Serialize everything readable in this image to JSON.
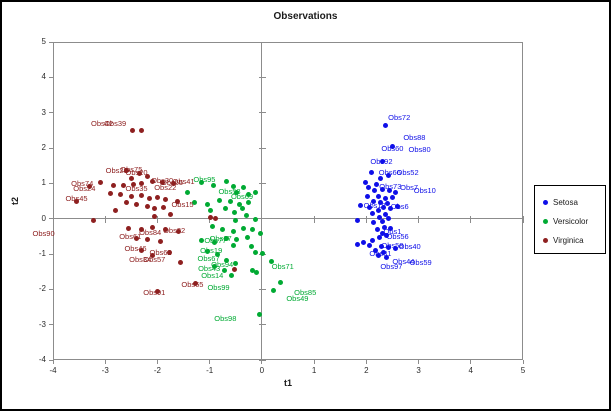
{
  "canvas": {
    "background": "#FFFFFF",
    "border_color": "#000000",
    "axis_line_color": "#8C8C8C"
  },
  "chart_data": {
    "type": "scatter",
    "title": "Observations",
    "xlabel": "t1",
    "ylabel": "t2",
    "xlim": [
      -4,
      5
    ],
    "ylim": [
      -4,
      5
    ],
    "x_ticks": [
      -4,
      -3,
      -2,
      -1,
      0,
      1,
      2,
      3,
      4,
      5
    ],
    "y_ticks": [
      -4,
      -3,
      -2,
      -1,
      0,
      1,
      2,
      3,
      4,
      5
    ],
    "grid": false,
    "legend": {
      "position": "right",
      "entries": [
        "Setosa",
        "Versicolor",
        "Virginica"
      ]
    },
    "series": [
      {
        "name": "Setosa",
        "color": "#0F0FE8",
        "points": [
          [
            2.37,
            2.63
          ],
          [
            2.51,
            2.04
          ],
          [
            2.31,
            1.63
          ],
          [
            2.1,
            1.32
          ],
          [
            1.99,
            1.02
          ],
          [
            2.2,
            0.97
          ],
          [
            2.42,
            1.21
          ],
          [
            2.28,
            1.13
          ],
          [
            2.05,
            0.88
          ],
          [
            2.16,
            0.8
          ],
          [
            2.31,
            0.82
          ],
          [
            2.44,
            0.79
          ],
          [
            2.56,
            0.74
          ],
          [
            2.02,
            0.62
          ],
          [
            2.23,
            0.62
          ],
          [
            2.37,
            0.57
          ],
          [
            2.5,
            0.59
          ],
          [
            2.13,
            0.48
          ],
          [
            2.28,
            0.45
          ],
          [
            2.41,
            0.42
          ],
          [
            1.88,
            0.36
          ],
          [
            2.06,
            0.31
          ],
          [
            2.33,
            0.31
          ],
          [
            2.47,
            0.28
          ],
          [
            2.59,
            0.34
          ],
          [
            2.23,
            0.23
          ],
          [
            2.11,
            0.14
          ],
          [
            2.36,
            0.11
          ],
          [
            2.25,
            0.03
          ],
          [
            2.42,
            0.0
          ],
          [
            1.83,
            -0.06
          ],
          [
            2.3,
            -0.08
          ],
          [
            2.13,
            -0.11
          ],
          [
            2.35,
            -0.24
          ],
          [
            2.47,
            -0.28
          ],
          [
            2.21,
            -0.31
          ],
          [
            2.3,
            -0.42
          ],
          [
            2.39,
            -0.48
          ],
          [
            2.25,
            -0.54
          ],
          [
            2.12,
            -0.62
          ],
          [
            1.95,
            -0.68
          ],
          [
            1.84,
            -0.74
          ],
          [
            2.06,
            -0.77
          ],
          [
            2.29,
            -0.79
          ],
          [
            2.42,
            -0.82
          ],
          [
            2.55,
            -0.85
          ],
          [
            2.17,
            -0.91
          ],
          [
            2.33,
            -0.96
          ],
          [
            2.24,
            -1.05
          ],
          [
            2.38,
            -1.1
          ]
        ],
        "point_labels": [
          [
            "Obs72",
            2.63,
            2.86
          ],
          [
            "Obs88",
            2.92,
            2.29
          ],
          [
            "Obs60",
            2.5,
            1.98
          ],
          [
            "Obs80",
            3.02,
            1.95
          ],
          [
            "Obs92",
            2.29,
            1.61
          ],
          [
            "Obs66",
            2.45,
            1.3
          ],
          [
            "Obs52",
            2.79,
            1.3
          ],
          [
            "Obs73",
            2.46,
            0.9
          ],
          [
            "Obs7",
            2.82,
            0.86
          ],
          [
            "Obs10",
            3.12,
            0.79
          ],
          [
            "Obs18",
            2.16,
            0.37
          ],
          [
            "Obs6",
            2.64,
            0.33
          ],
          [
            "Obs1",
            2.5,
            -0.37
          ],
          [
            "Obs56",
            2.6,
            -0.51
          ],
          [
            "Obs58",
            2.5,
            -0.76
          ],
          [
            "Obs40",
            2.83,
            -0.79
          ],
          [
            "Obs31",
            2.27,
            -0.99
          ],
          [
            "Obs44",
            2.71,
            -1.22
          ],
          [
            "Obs59",
            3.04,
            -1.25
          ],
          [
            "Obs97",
            2.48,
            -1.36
          ]
        ]
      },
      {
        "name": "Versicolor",
        "color": "#00AA33",
        "points": [
          [
            -1.42,
            0.75
          ],
          [
            -1.15,
            1.02
          ],
          [
            -0.92,
            0.95
          ],
          [
            -0.68,
            1.05
          ],
          [
            -0.55,
            0.92
          ],
          [
            -0.35,
            0.88
          ],
          [
            -0.48,
            0.75
          ],
          [
            -0.25,
            0.68
          ],
          [
            -0.12,
            0.75
          ],
          [
            -1.3,
            0.45
          ],
          [
            -1.05,
            0.4
          ],
          [
            -0.82,
            0.52
          ],
          [
            -0.6,
            0.48
          ],
          [
            -0.42,
            0.4
          ],
          [
            -0.25,
            0.45
          ],
          [
            -0.38,
            0.28
          ],
          [
            -0.7,
            0.28
          ],
          [
            -0.52,
            0.18
          ],
          [
            -0.98,
            0.22
          ],
          [
            -0.3,
            0.08
          ],
          [
            -0.12,
            -0.03
          ],
          [
            -0.5,
            -0.05
          ],
          [
            -0.95,
            -0.22
          ],
          [
            -0.75,
            -0.3
          ],
          [
            -0.55,
            -0.35
          ],
          [
            -0.35,
            -0.28
          ],
          [
            -0.18,
            -0.32
          ],
          [
            -0.02,
            -0.42
          ],
          [
            -0.28,
            -0.52
          ],
          [
            -0.48,
            -0.58
          ],
          [
            -0.68,
            -0.55
          ],
          [
            -1.15,
            -0.62
          ],
          [
            -0.9,
            -0.68
          ],
          [
            -0.55,
            -0.75
          ],
          [
            -0.2,
            -0.79
          ],
          [
            -0.13,
            -0.96
          ],
          [
            0.01,
            -0.99
          ],
          [
            -1.05,
            -0.92
          ],
          [
            -0.85,
            -1.02
          ],
          [
            -0.68,
            -1.18
          ],
          [
            -0.5,
            -1.28
          ],
          [
            -0.9,
            -1.35
          ],
          [
            -0.72,
            -1.48
          ],
          [
            -0.18,
            -1.48
          ],
          [
            -0.11,
            -1.53
          ],
          [
            -0.58,
            -1.62
          ],
          [
            0.18,
            -1.22
          ],
          [
            0.36,
            -1.81
          ],
          [
            0.23,
            -2.02
          ],
          [
            -0.05,
            -2.72
          ]
        ],
        "point_labels": [
          [
            "Obs95",
            -1.1,
            1.1
          ],
          [
            "Obs53",
            -0.62,
            0.75
          ],
          [
            "Obs69",
            -0.38,
            0.62
          ],
          [
            "Obs87",
            -0.79,
            -0.57
          ],
          [
            "Obs77",
            -0.89,
            -0.62
          ],
          [
            "Obs19",
            -0.97,
            -0.91
          ],
          [
            "Obs67",
            -1.02,
            -1.13
          ],
          [
            "Obs94",
            -0.76,
            -1.3
          ],
          [
            "Obs43",
            -1.01,
            -1.42
          ],
          [
            "Obs14",
            -0.95,
            -1.62
          ],
          [
            "Obs99",
            -0.83,
            -1.95
          ],
          [
            "Obs71",
            0.4,
            -1.36
          ],
          [
            "Obs85",
            0.83,
            -2.1
          ],
          [
            "Obs49",
            0.68,
            -2.27
          ],
          [
            "Obs98",
            -0.7,
            -2.83
          ]
        ]
      },
      {
        "name": "Virginica",
        "color": "#8E2020",
        "points": [
          [
            -2.48,
            2.49
          ],
          [
            -2.31,
            2.49
          ],
          [
            -2.6,
            1.35
          ],
          [
            -2.35,
            1.28
          ],
          [
            -2.5,
            1.15
          ],
          [
            -2.2,
            1.18
          ],
          [
            -3.1,
            1.02
          ],
          [
            -3.3,
            0.92
          ],
          [
            -2.85,
            0.95
          ],
          [
            -2.65,
            0.95
          ],
          [
            -2.45,
            0.98
          ],
          [
            -2.3,
            1.0
          ],
          [
            -2.1,
            1.05
          ],
          [
            -1.9,
            1.02
          ],
          [
            -1.7,
            1.0
          ],
          [
            -3.55,
            0.5
          ],
          [
            -2.9,
            0.72
          ],
          [
            -2.7,
            0.68
          ],
          [
            -2.5,
            0.62
          ],
          [
            -2.3,
            0.65
          ],
          [
            -2.15,
            0.58
          ],
          [
            -2.0,
            0.6
          ],
          [
            -1.85,
            0.55
          ],
          [
            -1.62,
            0.48
          ],
          [
            -2.6,
            0.45
          ],
          [
            -2.4,
            0.4
          ],
          [
            -2.2,
            0.35
          ],
          [
            -2.05,
            0.28
          ],
          [
            -1.88,
            0.32
          ],
          [
            -2.8,
            0.23
          ],
          [
            -3.23,
            -0.06
          ],
          [
            -2.06,
            0.06
          ],
          [
            -1.75,
            0.12
          ],
          [
            -0.98,
            0.03
          ],
          [
            -0.88,
            0.0
          ],
          [
            -2.55,
            -0.28
          ],
          [
            -2.3,
            -0.32
          ],
          [
            -2.1,
            -0.25
          ],
          [
            -1.85,
            -0.3
          ],
          [
            -1.6,
            -0.35
          ],
          [
            -2.4,
            -0.55
          ],
          [
            -2.2,
            -0.6
          ],
          [
            -1.95,
            -0.65
          ],
          [
            -1.77,
            -0.96
          ],
          [
            -2.3,
            -0.9
          ],
          [
            -2.1,
            -1.05
          ],
          [
            -1.55,
            -1.25
          ],
          [
            -1.27,
            -1.84
          ],
          [
            -0.53,
            -1.44
          ],
          [
            -2.0,
            -2.05
          ]
        ],
        "point_labels": [
          [
            "Obs42",
            -3.06,
            2.69
          ],
          [
            "Obs39",
            -2.81,
            2.69
          ],
          [
            "Obs28",
            -2.78,
            1.35
          ],
          [
            "Obs75",
            -2.5,
            1.38
          ],
          [
            "Obs20",
            -2.4,
            1.3
          ],
          [
            "Obs74",
            -3.44,
            0.99
          ],
          [
            "Obs24",
            -3.4,
            0.85
          ],
          [
            "Obs35",
            -2.4,
            0.85
          ],
          [
            "Obs45",
            -3.55,
            0.57
          ],
          [
            "Obs90",
            -4.18,
            -0.42
          ],
          [
            "Obs30",
            -1.91,
            1.08
          ],
          [
            "Obs22",
            -1.85,
            0.88
          ],
          [
            "Obs55",
            -1.72,
            1.02
          ],
          [
            "Obs41",
            -1.5,
            1.04
          ],
          [
            "Obs15",
            -1.52,
            0.4
          ],
          [
            "Obs84",
            -2.14,
            -0.4
          ],
          [
            "Obs32",
            -1.68,
            -0.34
          ],
          [
            "Obs61",
            -2.52,
            -0.51
          ],
          [
            "Obs46",
            -2.42,
            -0.85
          ],
          [
            "Obs62",
            -1.94,
            -0.96
          ],
          [
            "Obs34",
            -2.33,
            -1.16
          ],
          [
            "Obs57",
            -2.06,
            -1.16
          ],
          [
            "Obs65",
            -1.33,
            -1.87
          ],
          [
            "Obs91",
            -2.06,
            -2.1
          ]
        ]
      }
    ]
  }
}
